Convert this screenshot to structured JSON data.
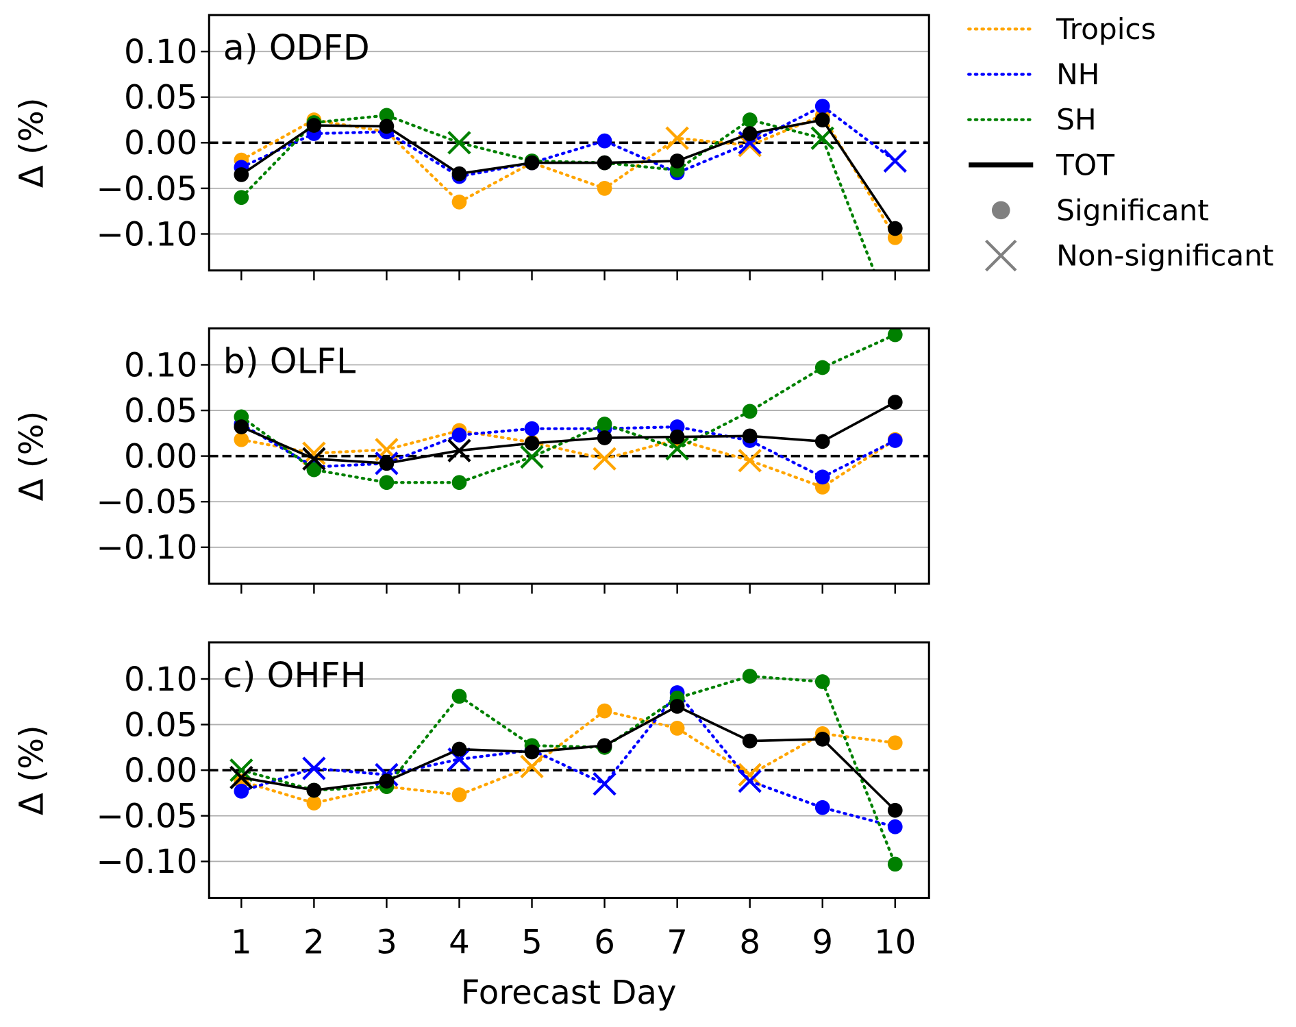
{
  "chart_data": {
    "type": "line",
    "xlabel": "Forecast Day",
    "ylabel": "Δ (%)",
    "x": [
      1,
      2,
      3,
      4,
      5,
      6,
      7,
      8,
      9,
      10
    ],
    "xtick_labels": [
      "1",
      "2",
      "3",
      "4",
      "5",
      "6",
      "7",
      "8",
      "9",
      "10"
    ],
    "ylim": [
      -0.14,
      0.14
    ],
    "yticks": [
      0.1,
      0.05,
      0.0,
      -0.05,
      -0.1
    ],
    "ytick_labels": [
      "0.10",
      "0.05",
      "0.00",
      "−0.05",
      "−0.10"
    ],
    "grid": "horizontal",
    "zero_line": "dashed",
    "legend": {
      "placement": "outside-right-top",
      "entries": [
        {
          "label": "Tropics",
          "style": "dotted",
          "color": "#FFA500"
        },
        {
          "label": "NH",
          "style": "dotted",
          "color": "#0000FF"
        },
        {
          "label": "SH",
          "style": "dotted",
          "color": "#008000"
        },
        {
          "label": "TOT",
          "style": "solid",
          "color": "#000000"
        },
        {
          "label": "Significant",
          "marker": "circle",
          "color": "#808080"
        },
        {
          "label": "Non-significant",
          "marker": "x",
          "color": "#808080"
        }
      ]
    },
    "panels": [
      {
        "title": "a) ODFD",
        "series": [
          {
            "name": "Tropics",
            "color": "#FFA500",
            "style": "dotted",
            "values": [
              -0.019,
              0.025,
              0.012,
              -0.065,
              -0.022,
              -0.05,
              0.005,
              -0.003,
              0.03,
              -0.104
            ],
            "significant": [
              true,
              true,
              true,
              true,
              true,
              true,
              false,
              false,
              true,
              true
            ]
          },
          {
            "name": "NH",
            "color": "#0000FF",
            "style": "dotted",
            "values": [
              -0.027,
              0.01,
              0.012,
              -0.037,
              -0.022,
              0.002,
              -0.033,
              0.0,
              0.04,
              -0.02
            ],
            "significant": [
              true,
              true,
              true,
              true,
              true,
              true,
              true,
              false,
              true,
              false
            ]
          },
          {
            "name": "SH",
            "color": "#008000",
            "style": "dotted",
            "values": [
              -0.06,
              0.022,
              0.03,
              0.0,
              -0.02,
              -0.022,
              -0.03,
              0.025,
              0.005,
              -0.2
            ],
            "significant": [
              true,
              true,
              true,
              false,
              true,
              true,
              true,
              true,
              false,
              true
            ]
          },
          {
            "name": "TOT",
            "color": "#000000",
            "style": "solid",
            "values": [
              -0.035,
              0.019,
              0.018,
              -0.034,
              -0.022,
              -0.022,
              -0.02,
              0.01,
              0.025,
              -0.094
            ],
            "significant": [
              true,
              true,
              true,
              true,
              true,
              true,
              true,
              true,
              true,
              true
            ]
          }
        ]
      },
      {
        "title": "b) OLFL",
        "series": [
          {
            "name": "Tropics",
            "color": "#FFA500",
            "style": "dotted",
            "values": [
              0.018,
              0.003,
              0.007,
              0.028,
              0.015,
              -0.003,
              0.018,
              -0.005,
              -0.034,
              0.018
            ],
            "significant": [
              true,
              false,
              false,
              true,
              true,
              false,
              true,
              false,
              true,
              true
            ]
          },
          {
            "name": "NH",
            "color": "#0000FF",
            "style": "dotted",
            "values": [
              0.035,
              -0.012,
              -0.008,
              0.023,
              0.03,
              0.03,
              0.032,
              0.017,
              -0.023,
              0.017
            ],
            "significant": [
              true,
              true,
              false,
              true,
              true,
              true,
              true,
              true,
              true,
              true
            ]
          },
          {
            "name": "SH",
            "color": "#008000",
            "style": "dotted",
            "values": [
              0.043,
              -0.015,
              -0.029,
              -0.029,
              -0.001,
              0.035,
              0.008,
              0.049,
              0.097,
              0.133
            ],
            "significant": [
              true,
              true,
              true,
              true,
              false,
              true,
              false,
              true,
              true,
              true
            ]
          },
          {
            "name": "TOT",
            "color": "#000000",
            "style": "solid",
            "values": [
              0.032,
              -0.003,
              -0.008,
              0.006,
              0.014,
              0.02,
              0.021,
              0.022,
              0.016,
              0.059
            ],
            "significant": [
              true,
              false,
              true,
              false,
              true,
              true,
              true,
              true,
              true,
              true
            ]
          }
        ]
      },
      {
        "title": "c) OHFH",
        "series": [
          {
            "name": "Tropics",
            "color": "#FFA500",
            "style": "dotted",
            "values": [
              -0.012,
              -0.036,
              -0.018,
              -0.027,
              0.004,
              0.065,
              0.046,
              -0.005,
              0.04,
              0.03
            ],
            "significant": [
              true,
              true,
              true,
              true,
              false,
              true,
              true,
              false,
              true,
              true
            ]
          },
          {
            "name": "NH",
            "color": "#0000FF",
            "style": "dotted",
            "values": [
              -0.023,
              0.002,
              -0.005,
              0.012,
              0.022,
              -0.015,
              0.085,
              -0.012,
              -0.041,
              -0.062
            ],
            "significant": [
              true,
              false,
              false,
              false,
              true,
              false,
              true,
              false,
              true,
              true
            ]
          },
          {
            "name": "SH",
            "color": "#008000",
            "style": "dotted",
            "values": [
              0.0,
              -0.022,
              -0.018,
              0.081,
              0.027,
              0.025,
              0.079,
              0.103,
              0.097,
              -0.103
            ],
            "significant": [
              false,
              true,
              true,
              true,
              true,
              true,
              true,
              true,
              true,
              true
            ]
          },
          {
            "name": "TOT",
            "color": "#000000",
            "style": "solid",
            "values": [
              -0.008,
              -0.022,
              -0.012,
              0.023,
              0.02,
              0.027,
              0.07,
              0.032,
              0.034,
              -0.044
            ],
            "significant": [
              false,
              true,
              true,
              true,
              true,
              true,
              true,
              true,
              true,
              true
            ]
          }
        ]
      }
    ]
  }
}
